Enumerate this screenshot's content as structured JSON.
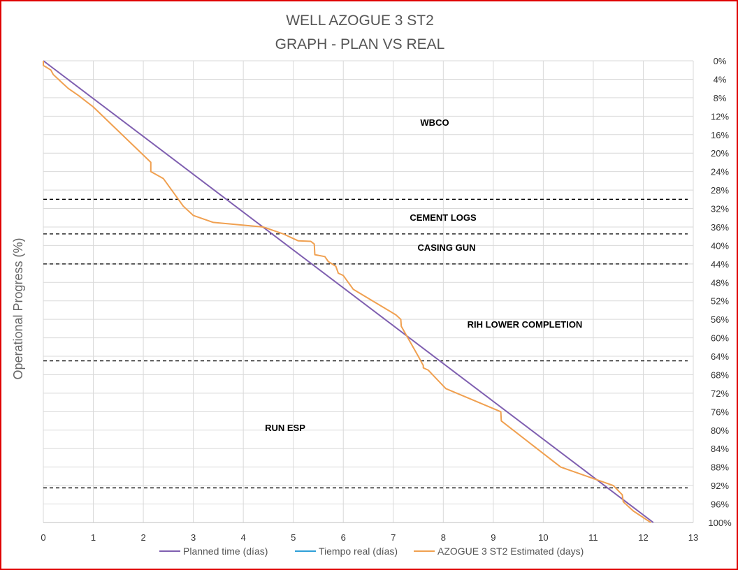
{
  "chart_data": {
    "type": "line",
    "title": [
      "WELL AZOGUE 3 ST2",
      "GRAPH  - PLAN VS REAL"
    ],
    "xlabel": "",
    "ylabel": "Operational Progress (%)",
    "xlim": [
      0,
      13
    ],
    "ylim": [
      0,
      100
    ],
    "y_reversed": true,
    "y_axis_position": "right",
    "grid": true,
    "x_ticks": [
      "0",
      "1",
      "2",
      "3",
      "4",
      "5",
      "6",
      "7",
      "8",
      "9",
      "10",
      "11",
      "12",
      "13"
    ],
    "y_ticks": [
      "0%",
      "4%",
      "8%",
      "12%",
      "16%",
      "20%",
      "24%",
      "28%",
      "32%",
      "36%",
      "40%",
      "44%",
      "48%",
      "52%",
      "56%",
      "60%",
      "64%",
      "68%",
      "72%",
      "76%",
      "80%",
      "84%",
      "88%",
      "92%",
      "96%",
      "100%"
    ],
    "legend_position": "bottom",
    "series": [
      {
        "name": "Planned time (días)",
        "color": "#7f5fb0",
        "points": [
          [
            0,
            0
          ],
          [
            12.2,
            100
          ]
        ]
      },
      {
        "name": "Tiempo real (días)",
        "color": "#2e9fd8",
        "points": []
      },
      {
        "name": "AZOGUE 3 ST2 Estimated (days)",
        "color": "#f0a050",
        "points": [
          [
            0,
            0
          ],
          [
            0,
            1
          ],
          [
            0.15,
            2
          ],
          [
            0.2,
            3
          ],
          [
            0.4,
            5
          ],
          [
            0.5,
            6
          ],
          [
            0.7,
            7.5
          ],
          [
            1.0,
            10
          ],
          [
            2.15,
            22
          ],
          [
            2.15,
            24
          ],
          [
            2.4,
            25.5
          ],
          [
            2.8,
            31.5
          ],
          [
            3.0,
            33.5
          ],
          [
            3.4,
            35
          ],
          [
            4.4,
            36
          ],
          [
            4.8,
            37.5
          ],
          [
            5.1,
            39
          ],
          [
            5.35,
            39.1
          ],
          [
            5.42,
            39.7
          ],
          [
            5.43,
            42
          ],
          [
            5.63,
            42.4
          ],
          [
            5.7,
            43.5
          ],
          [
            5.85,
            44.5
          ],
          [
            5.9,
            46
          ],
          [
            6.0,
            46.5
          ],
          [
            6.2,
            49.5
          ],
          [
            7.05,
            55
          ],
          [
            7.15,
            56
          ],
          [
            7.16,
            57.5
          ],
          [
            7.5,
            64
          ],
          [
            7.6,
            66
          ],
          [
            7.6,
            66.5
          ],
          [
            7.7,
            67
          ],
          [
            8.05,
            71
          ],
          [
            9.15,
            76
          ],
          [
            9.16,
            78
          ],
          [
            10.35,
            88
          ],
          [
            11.4,
            92
          ],
          [
            11.58,
            94
          ],
          [
            11.6,
            95.5
          ],
          [
            11.8,
            97.5
          ],
          [
            12.15,
            100
          ]
        ]
      }
    ],
    "phases": [
      {
        "label": "WBCO",
        "y_from": 0,
        "y_to": 30
      },
      {
        "label": "CEMENT LOGS",
        "y_from": 30,
        "y_to": 37.5
      },
      {
        "label": "CASING GUN",
        "y_from": 37.5,
        "y_to": 44
      },
      {
        "label": "RIH LOWER COMPLETION",
        "y_from": 44,
        "y_to": 65
      },
      {
        "label": "RUN ESP",
        "y_from": 65,
        "y_to": 92.5
      }
    ],
    "phase_boundaries": [
      30,
      37.5,
      44,
      65,
      92.5
    ]
  }
}
